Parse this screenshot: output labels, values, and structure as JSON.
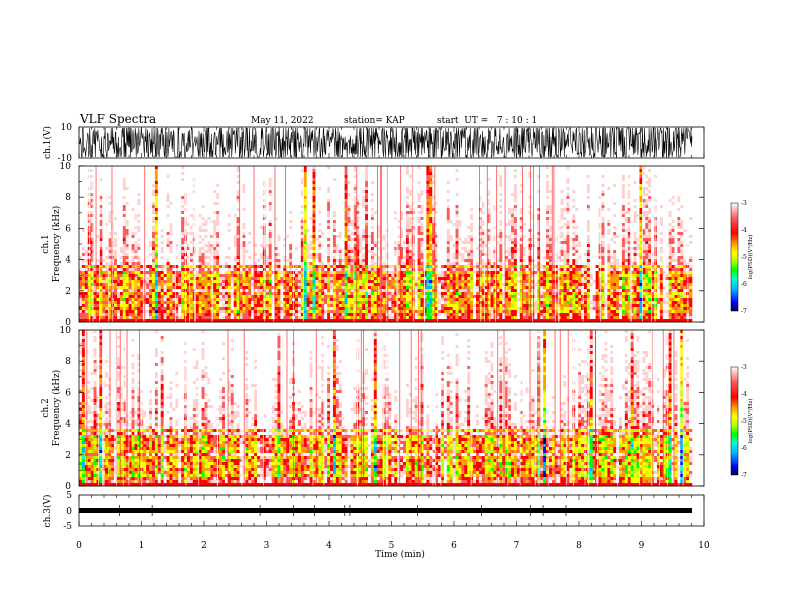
{
  "header": {
    "title": "VLF Spectra",
    "date": "May 11, 2022",
    "station": "station= KAP",
    "start": "start  UT =   7 : 10 : 1"
  },
  "chart_data": [
    {
      "type": "line",
      "panel": "ch1-waveform",
      "ylabel": "ch.1(V)",
      "ylim": [
        -10,
        10
      ],
      "yticks": [
        "10",
        "-10"
      ],
      "xlim": [
        0,
        10
      ],
      "description_values": {
        "trace": "saturated noise between -10 and 10 V"
      }
    },
    {
      "type": "heatmap",
      "panel": "ch1-spectrogram",
      "ylabel": "ch.1",
      "ylabel2": "Frequency (kHz)",
      "ylim": [
        0,
        10
      ],
      "yticks": [
        "0",
        "2",
        "4",
        "6",
        "8",
        "10"
      ],
      "xlim": [
        0,
        10
      ],
      "colorbar": {
        "label": "log(PSD)(V²/Hz)",
        "range": [
          -7,
          -3
        ],
        "ticks": [
          "-3",
          "-4",
          "-5",
          "-6",
          "-7"
        ]
      }
    },
    {
      "type": "heatmap",
      "panel": "ch2-spectrogram",
      "ylabel": "ch.2",
      "ylabel2": "Frequency (kHz)",
      "ylim": [
        0,
        10
      ],
      "yticks": [
        "0",
        "2",
        "4",
        "6",
        "8",
        "10"
      ],
      "xlim": [
        0,
        10
      ],
      "colorbar": {
        "label": "log(PSD)(V²/Hz)",
        "range": [
          -7,
          -3
        ],
        "ticks": [
          "-3",
          "-4",
          "-5",
          "-6",
          "-7"
        ]
      }
    },
    {
      "type": "line",
      "panel": "ch3-waveform",
      "ylabel": "ch.3(V)",
      "ylim": [
        -5,
        5
      ],
      "yticks": [
        "5",
        "0",
        "-5"
      ],
      "xlim": [
        0,
        10
      ],
      "xlabel": "Time (min)",
      "xticks": [
        "0",
        "1",
        "2",
        "3",
        "4",
        "5",
        "6",
        "7",
        "8",
        "9",
        "10"
      ]
    }
  ],
  "colors": {
    "colormap": [
      "#000050",
      "#0000ff",
      "#00b4ff",
      "#00ffc8",
      "#00ff00",
      "#b4ff00",
      "#ffff00",
      "#ffa000",
      "#ff0000",
      "#ff5a5a",
      "#ffd0d0",
      "#ffffff"
    ]
  }
}
